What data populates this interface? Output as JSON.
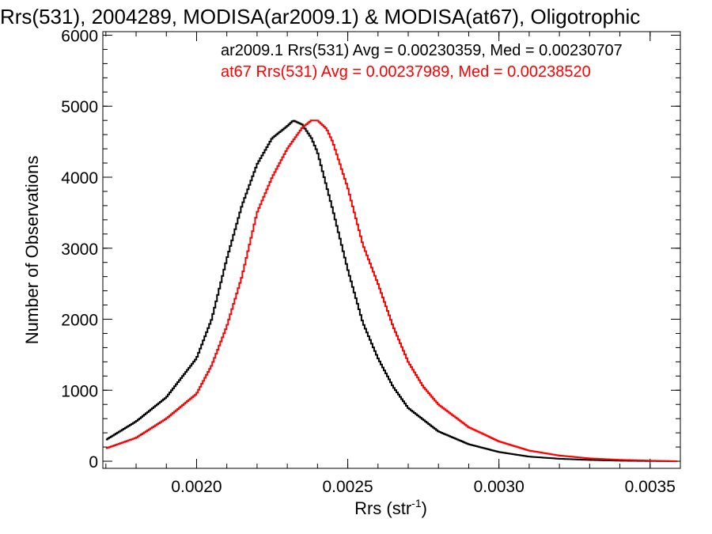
{
  "chart_data": {
    "type": "line",
    "step": true,
    "title": "Rrs(531), 2004289, MODISA(ar2009.1) & MODISA(at67), Oligotrophic",
    "xlabel": "Rrs (str",
    "xlabel_sup": "-1",
    "xlabel_end": ")",
    "ylabel": "Number of Observations",
    "xlim": [
      0.00169,
      0.0036
    ],
    "ylim": [
      -100,
      6050
    ],
    "x_ticks": [
      0.002,
      0.0025,
      0.003,
      0.0035
    ],
    "x_tick_labels": [
      "0.0020",
      "0.0025",
      "0.0030",
      "0.0035"
    ],
    "y_ticks": [
      0,
      1000,
      2000,
      3000,
      4000,
      5000,
      6000
    ],
    "y_tick_labels": [
      "0",
      "1000",
      "2000",
      "3000",
      "4000",
      "5000",
      "6000"
    ],
    "legend_position": "top-right",
    "series": [
      {
        "name": "ar2009.1 Rrs(531) Avg = 0.00230359, Med = 0.00230707",
        "color": "#000000",
        "x": [
          0.0017,
          0.0018,
          0.0019,
          0.002,
          0.00205,
          0.0021,
          0.00215,
          0.0022,
          0.00225,
          0.0023,
          0.00232,
          0.00235,
          0.00238,
          0.0024,
          0.00245,
          0.0025,
          0.00255,
          0.0026,
          0.00265,
          0.0027,
          0.0028,
          0.0029,
          0.003,
          0.0031,
          0.0032,
          0.0033,
          0.0034,
          0.0035,
          0.00359
        ],
        "y": [
          300,
          560,
          900,
          1450,
          2000,
          2850,
          3600,
          4180,
          4550,
          4720,
          4800,
          4740,
          4550,
          4350,
          3550,
          2700,
          1950,
          1450,
          1050,
          750,
          420,
          240,
          130,
          65,
          35,
          18,
          8,
          3,
          0
        ]
      },
      {
        "name": "at67 Rrs(531) Avg = 0.00237989, Med = 0.00238520",
        "color": "#ff0000",
        "x": [
          0.0017,
          0.0018,
          0.0019,
          0.002,
          0.00205,
          0.0021,
          0.00215,
          0.0022,
          0.00225,
          0.0023,
          0.00235,
          0.00238,
          0.0024,
          0.00243,
          0.00245,
          0.0025,
          0.00255,
          0.0026,
          0.00265,
          0.0027,
          0.00275,
          0.0028,
          0.0029,
          0.003,
          0.0031,
          0.0032,
          0.0033,
          0.0034,
          0.0035,
          0.00359
        ],
        "y": [
          180,
          330,
          600,
          950,
          1350,
          1900,
          2600,
          3500,
          4000,
          4400,
          4700,
          4800,
          4800,
          4680,
          4500,
          3850,
          3050,
          2500,
          1900,
          1400,
          1050,
          800,
          480,
          280,
          150,
          80,
          40,
          20,
          8,
          0
        ]
      }
    ]
  }
}
